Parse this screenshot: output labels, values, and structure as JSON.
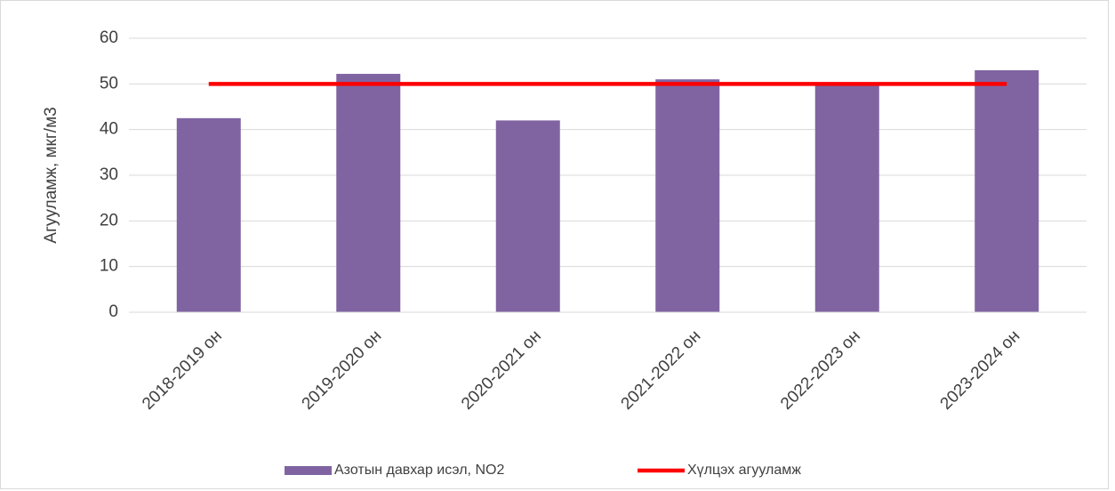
{
  "chart_data": {
    "type": "bar",
    "y_label": "Агууламж, мкг/м3",
    "categories": [
      "2018-2019 он",
      "2019-2020 он",
      "2020-2021 он",
      "2021-2022 он",
      "2022-2023 он",
      "2023-2024 он"
    ],
    "series": [
      {
        "name": "Азотын давхар исэл, NO2",
        "type": "bar",
        "color": "#8064a2",
        "values": [
          42.5,
          52.2,
          42,
          51,
          50,
          53
        ]
      },
      {
        "name": "Хүлцэх агууламж",
        "type": "line",
        "color": "#ff0000",
        "values": [
          50,
          50,
          50,
          50,
          50,
          50
        ]
      }
    ],
    "ylim": [
      0,
      60
    ],
    "yticks": [
      0,
      10,
      20,
      30,
      40,
      50,
      60
    ],
    "grid": true,
    "legend": "bottom"
  }
}
